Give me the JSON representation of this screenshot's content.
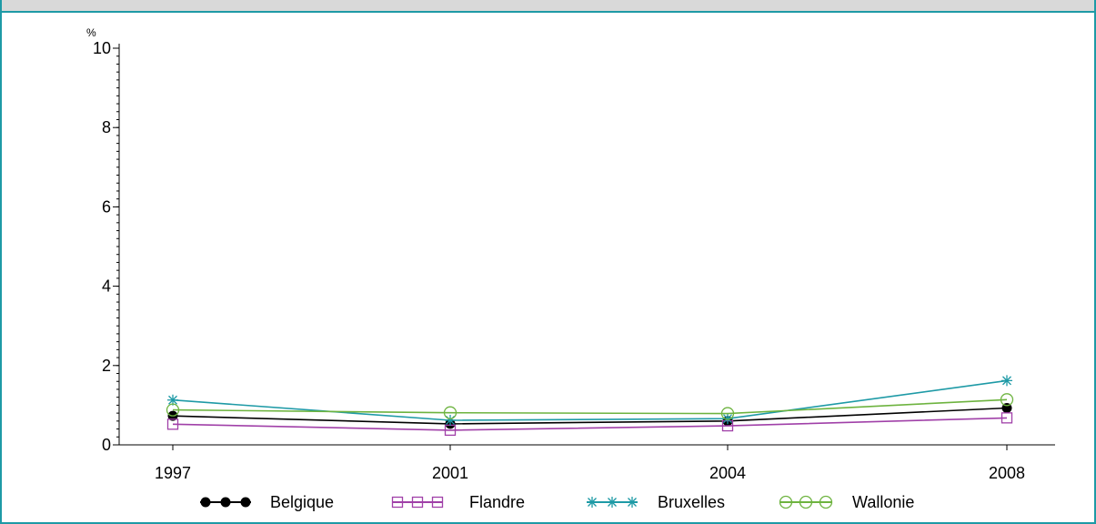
{
  "chart_data": {
    "type": "line",
    "ylabel": "%",
    "ylim": [
      0,
      10
    ],
    "yticks": [
      0,
      2,
      4,
      6,
      8,
      10
    ],
    "categories": [
      "1997",
      "2001",
      "2004",
      "2008"
    ],
    "grid": false,
    "legend": "bottom",
    "series": [
      {
        "name": "Belgique",
        "values": [
          0.73,
          0.53,
          0.6,
          0.93
        ],
        "color": "#000000",
        "marker": "dot"
      },
      {
        "name": "Flandre",
        "values": [
          0.52,
          0.37,
          0.48,
          0.68
        ],
        "color": "#a040a8",
        "marker": "square"
      },
      {
        "name": "Bruxelles",
        "values": [
          1.13,
          0.62,
          0.66,
          1.62
        ],
        "color": "#1e9aa6",
        "marker": "star"
      },
      {
        "name": "Wallonie",
        "values": [
          0.88,
          0.81,
          0.79,
          1.14
        ],
        "color": "#6db33f",
        "marker": "circle"
      }
    ]
  }
}
